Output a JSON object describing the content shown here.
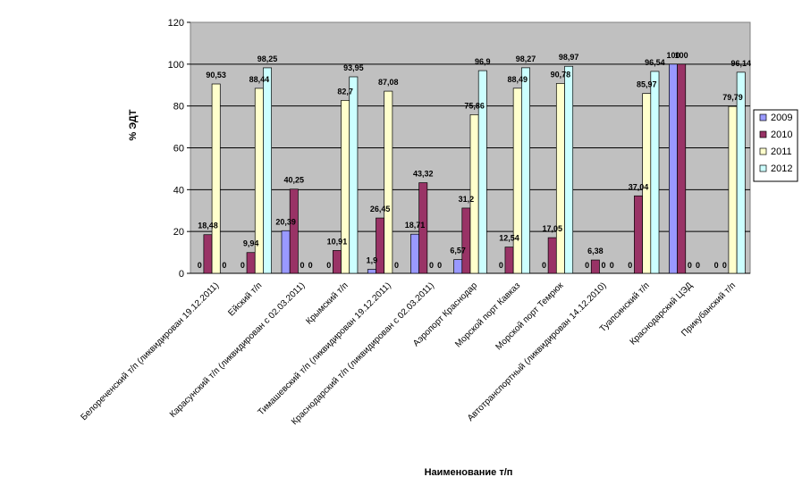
{
  "colors": {
    "plot_bg": "#c0c0c0",
    "gridline": "#000000",
    "series": [
      "#9999ff",
      "#993366",
      "#ffffcc",
      "#ccffff"
    ]
  },
  "chart_data": {
    "type": "bar",
    "xlabel": "Наименование т/п",
    "ylabel": "% ЭДТ",
    "ylim": [
      0,
      120
    ],
    "yticks": [
      0,
      20,
      40,
      60,
      80,
      100,
      120
    ],
    "grid": true,
    "legend_position": "right",
    "categories": [
      "Белореченский т/п (ликвидирован 19.12.2011)",
      "Ейский т/п",
      "Карасунский т/п (ликвидирован с 02.03.2011)",
      "Крымский т/п",
      "Тимашевский т/п (ликвидирован 19.12.2011)",
      "Краснодарский т/п (ликвидирован с 02.03.2011)",
      "Аэропорт Краснодар",
      "Морской порт Кавказ",
      "Морской порт Темрюк",
      "Автотранспортный (ликвидирован 14.12.2010)",
      "Туапсинский т/п",
      "Краснодарский ЦЭД",
      "Прикубанский т/п"
    ],
    "series": [
      {
        "name": "2009",
        "values": [
          0,
          0,
          20.39,
          0,
          1.9,
          18.71,
          6.57,
          0,
          0,
          0,
          0,
          null,
          null
        ],
        "labels": [
          "0",
          "0",
          "20,39",
          "0",
          "1,9",
          "18,71",
          "6,57",
          "0",
          "0",
          "0",
          "0",
          "",
          ""
        ]
      },
      {
        "name": "2010",
        "values": [
          18.48,
          9.94,
          40.25,
          10.91,
          26.45,
          43.32,
          31.2,
          12.54,
          17.05,
          6.38,
          37.04,
          null,
          null
        ],
        "labels": [
          "18,48",
          "9,94",
          "40,25",
          "10,91",
          "26,45",
          "43,32",
          "31,2",
          "12,54",
          "17,05",
          "6,38",
          "37,04",
          "",
          ""
        ]
      },
      {
        "name": "2011",
        "values": [
          90.53,
          88.44,
          0,
          82.7,
          87.08,
          0,
          75.86,
          88.49,
          90.78,
          0,
          85.97,
          0,
          79.79
        ],
        "labels": [
          "90,53",
          "88,44",
          "0",
          "82,7",
          "87,08",
          "0",
          "75,86",
          "88,49",
          "90,78",
          "0",
          "85,97",
          "0",
          "79,79"
        ]
      },
      {
        "name": "2012",
        "values": [
          0,
          98.25,
          0,
          93.95,
          0,
          0,
          96.9,
          98.27,
          98.97,
          0,
          96.54,
          0,
          96.14
        ],
        "labels": [
          "0",
          "98,25",
          "0",
          "93,95",
          "0",
          "0",
          "96,9",
          "98,27",
          "98,97",
          "0",
          "96,54",
          "0",
          "96,14"
        ]
      },
      {
        "name": "",
        "values": [
          null,
          null,
          null,
          null,
          null,
          null,
          null,
          null,
          null,
          null,
          null,
          100,
          null
        ],
        "labels": [
          "",
          "",
          "",
          "",
          "",
          "",
          "",
          "",
          "",
          "",
          "",
          "100",
          ""
        ]
      },
      {
        "name": "",
        "values": [
          null,
          null,
          null,
          null,
          null,
          null,
          null,
          null,
          null,
          null,
          null,
          100,
          null
        ],
        "labels": [
          "",
          "",
          "",
          "",
          "",
          "",
          "",
          "",
          "",
          "",
          "",
          "100",
          ""
        ]
      },
      {
        "name": "",
        "values": [
          null,
          null,
          null,
          null,
          null,
          null,
          null,
          null,
          null,
          null,
          null,
          null,
          0
        ],
        "labels": [
          "",
          "",
          "",
          "",
          "",
          "",
          "",
          "",
          "",
          "",
          "",
          "",
          "0"
        ]
      },
      {
        "name": "",
        "values": [
          null,
          null,
          null,
          null,
          null,
          null,
          null,
          null,
          null,
          null,
          null,
          null,
          0
        ],
        "labels": [
          "",
          "",
          "",
          "",
          "",
          "",
          "",
          "",
          "",
          "",
          "",
          "",
          "0"
        ]
      }
    ]
  }
}
